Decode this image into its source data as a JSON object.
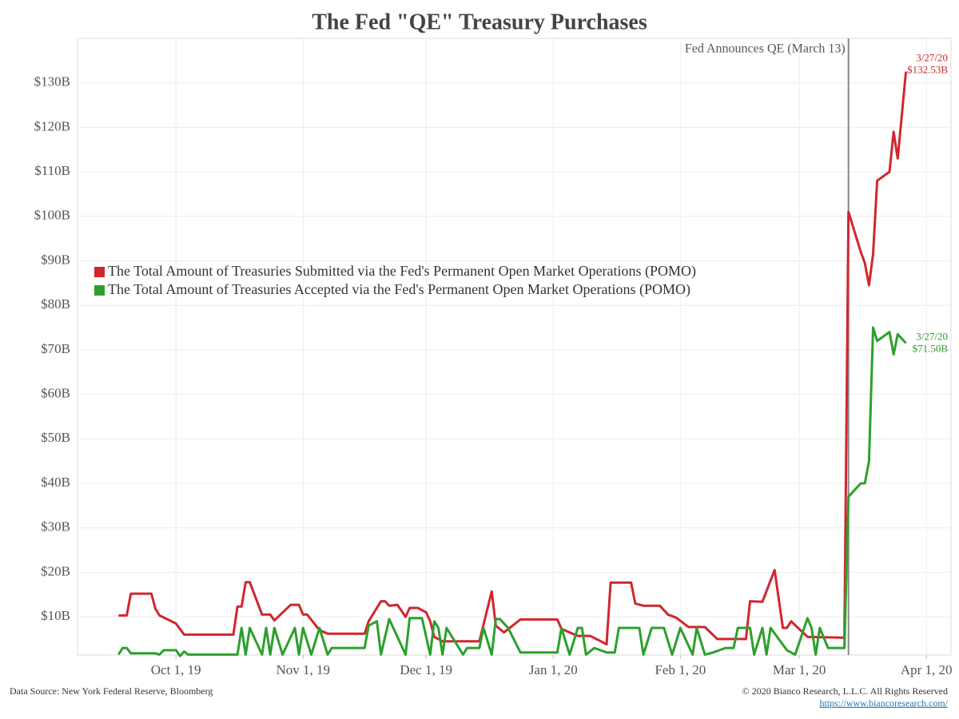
{
  "chart_data": {
    "type": "line",
    "title": "The Fed \"QE\" Treasury Purchases",
    "xlim": [
      "2019-09-07",
      "2020-04-07"
    ],
    "xticks": [
      {
        "value": "2019-10-01",
        "label": "Oct 1, 19"
      },
      {
        "value": "2019-11-01",
        "label": "Nov 1, 19"
      },
      {
        "value": "2019-12-01",
        "label": "Dec 1, 19"
      },
      {
        "value": "2020-01-01",
        "label": "Jan 1, 20"
      },
      {
        "value": "2020-02-01",
        "label": "Feb 1, 20"
      },
      {
        "value": "2020-03-01",
        "label": "Mar 1, 20"
      },
      {
        "value": "2020-04-01",
        "label": "Apr 1, 20"
      }
    ],
    "ylim": [
      1.4,
      140
    ],
    "yticks": [
      {
        "value": 10,
        "label": "$10B"
      },
      {
        "value": 20,
        "label": "$20B"
      },
      {
        "value": 30,
        "label": "$30B"
      },
      {
        "value": 40,
        "label": "$40B"
      },
      {
        "value": 50,
        "label": "$50B"
      },
      {
        "value": 60,
        "label": "$60B"
      },
      {
        "value": 70,
        "label": "$70B"
      },
      {
        "value": 80,
        "label": "$80B"
      },
      {
        "value": 90,
        "label": "$90B"
      },
      {
        "value": 100,
        "label": "$100B"
      },
      {
        "value": 110,
        "label": "$110B"
      },
      {
        "value": 120,
        "label": "$120B"
      },
      {
        "value": 130,
        "label": "$130B"
      }
    ],
    "grid": true,
    "event": {
      "x": "2020-03-13",
      "label": "Fed Announces QE (March 13)"
    },
    "series": [
      {
        "name": "The Total Amount of Treasuries Submitted via the Fed's Permanent Open Market Operations (POMO)",
        "color": "#d1262e",
        "end_label": {
          "date": "3/27/20",
          "value": "$132.53B"
        },
        "x": [
          "2019-09-17",
          "2019-09-19",
          "2019-09-20",
          "2019-09-25",
          "2019-09-26",
          "2019-09-27",
          "2019-10-01",
          "2019-10-03",
          "2019-10-15",
          "2019-10-16",
          "2019-10-17",
          "2019-10-18",
          "2019-10-19",
          "2019-10-22",
          "2019-10-24",
          "2019-10-25",
          "2019-10-29",
          "2019-10-31",
          "2019-11-01",
          "2019-11-02",
          "2019-11-05",
          "2019-11-07",
          "2019-11-16",
          "2019-11-17",
          "2019-11-20",
          "2019-11-21",
          "2019-11-22",
          "2019-11-24",
          "2019-11-26",
          "2019-11-27",
          "2019-11-29",
          "2019-12-01",
          "2019-12-02",
          "2019-12-03",
          "2019-12-05",
          "2019-12-14",
          "2019-12-17",
          "2019-12-18",
          "2019-12-20",
          "2019-12-24",
          "2020-01-02",
          "2020-01-03",
          "2020-01-05",
          "2020-01-07",
          "2020-01-10",
          "2020-01-12",
          "2020-01-14",
          "2020-01-15",
          "2020-01-20",
          "2020-01-21",
          "2020-01-23",
          "2020-01-27",
          "2020-01-29",
          "2020-01-31",
          "2020-02-03",
          "2020-02-07",
          "2020-02-10",
          "2020-02-17",
          "2020-02-18",
          "2020-02-21",
          "2020-02-24",
          "2020-02-26",
          "2020-02-27",
          "2020-02-28",
          "2020-03-03",
          "2020-03-12",
          "2020-03-13",
          "2020-03-16",
          "2020-03-17",
          "2020-03-18",
          "2020-03-19",
          "2020-03-20",
          "2020-03-23",
          "2020-03-24",
          "2020-03-25",
          "2020-03-27"
        ],
        "values": [
          10.3,
          10.3,
          15.2,
          15.2,
          11.8,
          10.3,
          8.5,
          6,
          6,
          12.3,
          12.3,
          17.8,
          17.8,
          10.5,
          10.5,
          9.2,
          12.7,
          12.7,
          10.5,
          10.5,
          7,
          6.2,
          6.2,
          9,
          13.5,
          13.5,
          12.5,
          12.7,
          10,
          12,
          12,
          11,
          9,
          5.5,
          4.5,
          4.5,
          15.7,
          8,
          6.5,
          9.4,
          9.4,
          7.3,
          6.5,
          5.7,
          5.7,
          4.8,
          3.8,
          17.7,
          17.7,
          13,
          12.5,
          12.5,
          10.5,
          9.8,
          7.7,
          7.7,
          5,
          5,
          13.5,
          13.4,
          20.5,
          7.5,
          7.5,
          9,
          5.5,
          5.3,
          101,
          92,
          89.5,
          84.5,
          91.5,
          108,
          110,
          119,
          113,
          132.53
        ]
      },
      {
        "name": "The Total Amount of Treasuries Accepted via the Fed's Permanent Open Market Operations (POMO)",
        "color": "#2ca02c",
        "end_label": {
          "date": "3/27/20",
          "value": "$71.50B"
        },
        "x": [
          "2019-09-17",
          "2019-09-18",
          "2019-09-19",
          "2019-09-20",
          "2019-09-26",
          "2019-09-27",
          "2019-09-28",
          "2019-10-01",
          "2019-10-02",
          "2019-10-03",
          "2019-10-04",
          "2019-10-16",
          "2019-10-17",
          "2019-10-18",
          "2019-10-19",
          "2019-10-22",
          "2019-10-23",
          "2019-10-24",
          "2019-10-25",
          "2019-10-27",
          "2019-10-30",
          "2019-10-31",
          "2019-11-01",
          "2019-11-03",
          "2019-11-05",
          "2019-11-07",
          "2019-11-08",
          "2019-11-16",
          "2019-11-17",
          "2019-11-19",
          "2019-11-20",
          "2019-11-22",
          "2019-11-26",
          "2019-11-27",
          "2019-11-30",
          "2019-12-02",
          "2019-12-03",
          "2019-12-04",
          "2019-12-05",
          "2019-12-06",
          "2019-12-10",
          "2019-12-11",
          "2019-12-14",
          "2019-12-15",
          "2019-12-17",
          "2019-12-18",
          "2019-12-19",
          "2019-12-21",
          "2019-12-24",
          "2020-01-02",
          "2020-01-03",
          "2020-01-05",
          "2020-01-07",
          "2020-01-08",
          "2020-01-09",
          "2020-01-11",
          "2020-01-14",
          "2020-01-16",
          "2020-01-17",
          "2020-01-22",
          "2020-01-23",
          "2020-01-25",
          "2020-01-28",
          "2020-01-30",
          "2020-02-01",
          "2020-02-04",
          "2020-02-05",
          "2020-02-07",
          "2020-02-09",
          "2020-02-12",
          "2020-02-14",
          "2020-02-15",
          "2020-02-18",
          "2020-02-19",
          "2020-02-21",
          "2020-02-22",
          "2020-02-23",
          "2020-02-27",
          "2020-02-29",
          "2020-03-03",
          "2020-03-04",
          "2020-03-05",
          "2020-03-06",
          "2020-03-08",
          "2020-03-12",
          "2020-03-13",
          "2020-03-16",
          "2020-03-17",
          "2020-03-18",
          "2020-03-19",
          "2020-03-20",
          "2020-03-23",
          "2020-03-24",
          "2020-03-25",
          "2020-03-27"
        ],
        "values": [
          1.5,
          3,
          3,
          1.8,
          1.8,
          1.5,
          2.5,
          2.5,
          1.2,
          2.2,
          1.5,
          1.5,
          7.5,
          1.5,
          7.5,
          1.5,
          7.5,
          1.5,
          7.5,
          1.5,
          7.5,
          1.5,
          7.5,
          1.5,
          7.5,
          1.5,
          3,
          3,
          8,
          9,
          1.5,
          9.5,
          1.5,
          9.7,
          9.7,
          1.5,
          9,
          7.5,
          1.5,
          7.5,
          1.5,
          3,
          3,
          7.5,
          1.5,
          9.5,
          9.5,
          7.5,
          2,
          2,
          7.5,
          1.5,
          7.5,
          7.5,
          1.5,
          3,
          2,
          2,
          7.5,
          7.5,
          1.5,
          7.5,
          7.5,
          1.5,
          7.5,
          1.5,
          7.5,
          1.5,
          2,
          3,
          3,
          7.5,
          7.5,
          1.5,
          7.5,
          1.5,
          7.5,
          2.5,
          1.5,
          9.7,
          7.5,
          1.5,
          7.5,
          3,
          3,
          37,
          40,
          40,
          45,
          75,
          72,
          74,
          69,
          73.5,
          71.5
        ]
      }
    ],
    "footer": {
      "source": "Data Source: New York Federal Reserve, Bloomberg",
      "copyright": "© 2020 Bianco Research, L.L.C. All Rights Reserved",
      "link": "https://www.biancoresearch.com/"
    }
  }
}
